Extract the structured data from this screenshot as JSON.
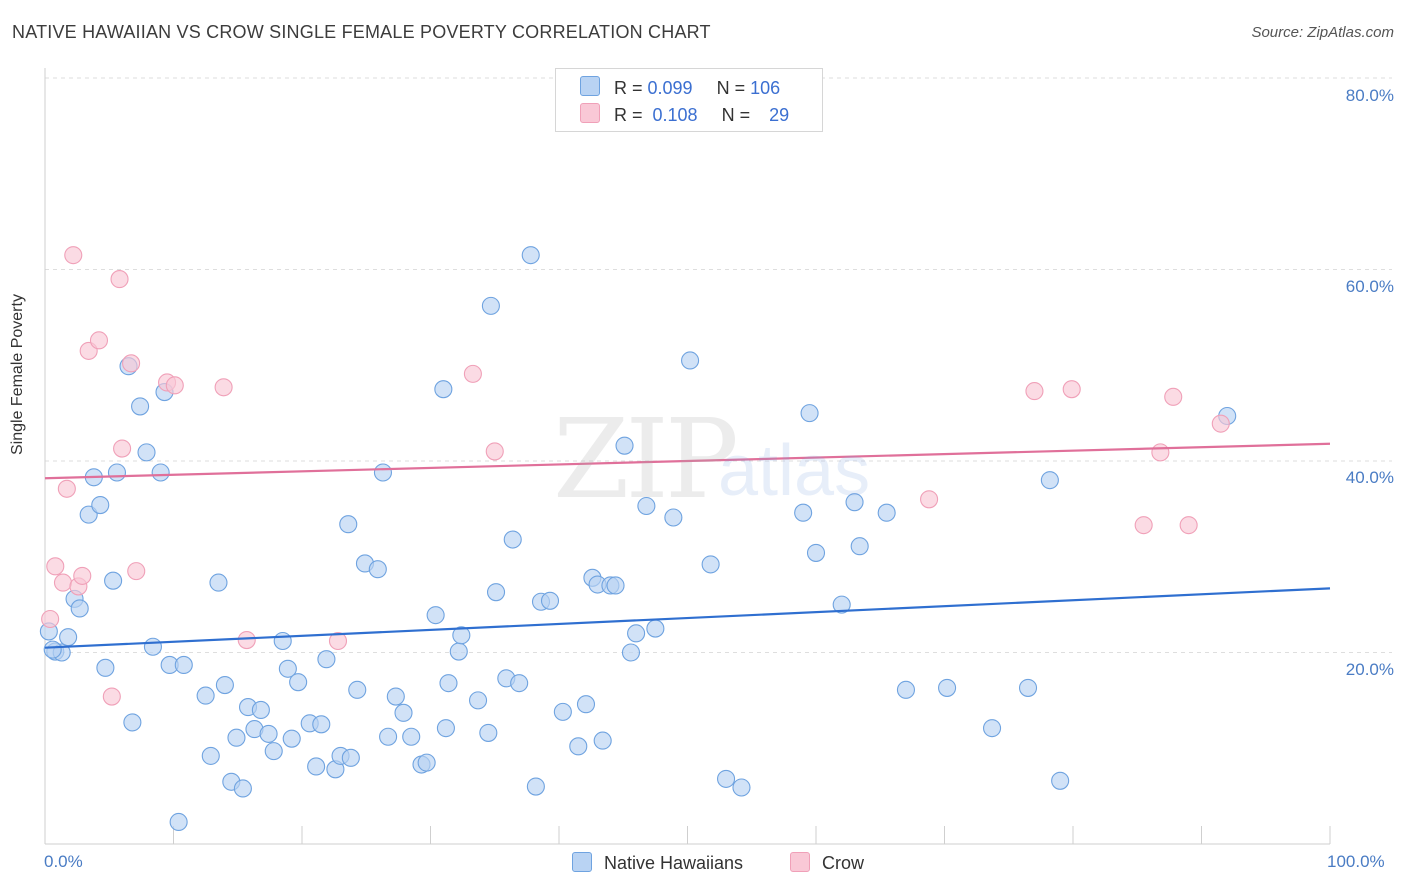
{
  "title": "NATIVE HAWAIIAN VS CROW SINGLE FEMALE POVERTY CORRELATION CHART",
  "source": "Source: ZipAtlas.com",
  "watermark": {
    "zip": "ZIP",
    "atlas": "atlas"
  },
  "colors": {
    "blue": "#6fa3e0",
    "blue_fill": "#b9d3f3",
    "blue_line": "#2f6fd0",
    "pink": "#f0a0b8",
    "pink_fill": "#f9c8d6",
    "pink_line": "#e0709a",
    "tick_text": "#4a7cc4"
  },
  "legend": {
    "rows": [
      {
        "r_label": "R = ",
        "r_value": "0.099",
        "n_label": "N = ",
        "n_value": "106"
      },
      {
        "r_label": "R = ",
        "r_value": "0.108",
        "n_label": "N = ",
        "n_value": "29"
      }
    ]
  },
  "bottom_legend": {
    "series1": "Native Hawaiians",
    "series2": "Crow"
  },
  "chart_data": {
    "type": "scatter",
    "title": "NATIVE HAWAIIAN VS CROW SINGLE FEMALE POVERTY CORRELATION CHART",
    "xlabel": "",
    "ylabel": "Single Female Poverty",
    "xlim": [
      0,
      100
    ],
    "ylim": [
      0,
      80
    ],
    "x_tick_labels": [
      "0.0%",
      "100.0%"
    ],
    "y_ticks": [
      20,
      40,
      60,
      80
    ],
    "y_tick_labels": [
      "20.0%",
      "40.0%",
      "60.0%",
      "80.0%"
    ],
    "grid": true,
    "legend_position": "top-center",
    "series": [
      {
        "name": "Native Hawaiians",
        "trend": {
          "x0": 0,
          "y0": 20.5,
          "x1": 100,
          "y1": 26.7
        },
        "points": [
          [
            0.3,
            22.2
          ],
          [
            0.8,
            20.1
          ],
          [
            1.3,
            20.0
          ],
          [
            1.8,
            21.6
          ],
          [
            2.3,
            25.6
          ],
          [
            2.7,
            24.6
          ],
          [
            3.4,
            34.4
          ],
          [
            3.8,
            38.3
          ],
          [
            4.3,
            35.4
          ],
          [
            4.7,
            18.4
          ],
          [
            5.3,
            27.5
          ],
          [
            5.6,
            38.8
          ],
          [
            6.5,
            49.9
          ],
          [
            6.8,
            12.7
          ],
          [
            7.4,
            45.7
          ],
          [
            7.9,
            40.9
          ],
          [
            8.4,
            20.6
          ],
          [
            9.0,
            38.8
          ],
          [
            9.3,
            47.2
          ],
          [
            9.7,
            18.7
          ],
          [
            10.4,
            2.3
          ],
          [
            10.8,
            18.7
          ],
          [
            12.5,
            15.5
          ],
          [
            12.9,
            9.2
          ],
          [
            13.5,
            27.3
          ],
          [
            14.0,
            16.6
          ],
          [
            14.5,
            6.5
          ],
          [
            14.9,
            11.1
          ],
          [
            15.4,
            5.8
          ],
          [
            15.8,
            14.3
          ],
          [
            16.3,
            12.0
          ],
          [
            16.8,
            14.0
          ],
          [
            17.4,
            11.5
          ],
          [
            17.8,
            9.7
          ],
          [
            18.5,
            21.2
          ],
          [
            18.9,
            18.3
          ],
          [
            19.2,
            11.0
          ],
          [
            19.7,
            16.9
          ],
          [
            20.6,
            12.6
          ],
          [
            21.1,
            8.1
          ],
          [
            21.5,
            12.5
          ],
          [
            21.9,
            19.3
          ],
          [
            22.6,
            7.8
          ],
          [
            23.0,
            9.2
          ],
          [
            23.6,
            33.4
          ],
          [
            23.8,
            9.0
          ],
          [
            24.3,
            16.1
          ],
          [
            24.9,
            29.3
          ],
          [
            25.9,
            28.7
          ],
          [
            26.3,
            38.8
          ],
          [
            26.7,
            11.2
          ],
          [
            27.3,
            15.4
          ],
          [
            27.9,
            13.7
          ],
          [
            28.5,
            11.2
          ],
          [
            29.3,
            8.3
          ],
          [
            29.7,
            8.5
          ],
          [
            30.4,
            23.9
          ],
          [
            31.0,
            47.5
          ],
          [
            31.2,
            12.1
          ],
          [
            31.4,
            16.8
          ],
          [
            32.2,
            20.1
          ],
          [
            32.4,
            21.8
          ],
          [
            33.7,
            15.0
          ],
          [
            34.5,
            11.6
          ],
          [
            34.7,
            56.2
          ],
          [
            35.1,
            26.3
          ],
          [
            35.9,
            17.3
          ],
          [
            36.4,
            31.8
          ],
          [
            36.9,
            16.8
          ],
          [
            37.8,
            61.5
          ],
          [
            38.2,
            6.0
          ],
          [
            38.6,
            25.3
          ],
          [
            39.3,
            25.4
          ],
          [
            40.3,
            13.8
          ],
          [
            41.5,
            10.2
          ],
          [
            42.1,
            14.6
          ],
          [
            42.6,
            27.8
          ],
          [
            43.0,
            27.1
          ],
          [
            43.4,
            10.8
          ],
          [
            44.0,
            27.0
          ],
          [
            44.4,
            27.0
          ],
          [
            45.1,
            41.6
          ],
          [
            45.6,
            20.0
          ],
          [
            46.0,
            22.0
          ],
          [
            46.8,
            35.3
          ],
          [
            47.5,
            22.5
          ],
          [
            48.9,
            34.1
          ],
          [
            50.2,
            50.5
          ],
          [
            51.8,
            29.2
          ],
          [
            53.0,
            6.8
          ],
          [
            54.2,
            5.9
          ],
          [
            59.0,
            34.6
          ],
          [
            59.5,
            45.0
          ],
          [
            60.0,
            30.4
          ],
          [
            62.0,
            25.0
          ],
          [
            63.0,
            35.7
          ],
          [
            63.4,
            31.1
          ],
          [
            65.5,
            34.6
          ],
          [
            67.0,
            16.1
          ],
          [
            70.2,
            16.3
          ],
          [
            73.7,
            12.1
          ],
          [
            76.5,
            16.3
          ],
          [
            78.2,
            38.0
          ],
          [
            79.0,
            6.6
          ],
          [
            92.0,
            44.7
          ],
          [
            0.6,
            20.3
          ]
        ]
      },
      {
        "name": "Crow",
        "trend": {
          "x0": 0,
          "y0": 38.2,
          "x1": 100,
          "y1": 41.8
        },
        "points": [
          [
            0.4,
            23.5
          ],
          [
            0.8,
            29.0
          ],
          [
            1.4,
            27.3
          ],
          [
            1.7,
            37.1
          ],
          [
            2.2,
            61.5
          ],
          [
            2.6,
            26.9
          ],
          [
            2.9,
            28.0
          ],
          [
            3.4,
            51.5
          ],
          [
            4.2,
            52.6
          ],
          [
            5.2,
            15.4
          ],
          [
            5.8,
            59.0
          ],
          [
            6.0,
            41.3
          ],
          [
            6.7,
            50.2
          ],
          [
            7.1,
            28.5
          ],
          [
            9.5,
            48.2
          ],
          [
            10.1,
            47.9
          ],
          [
            13.9,
            47.7
          ],
          [
            15.7,
            21.3
          ],
          [
            22.8,
            21.2
          ],
          [
            33.3,
            49.1
          ],
          [
            35.0,
            41.0
          ],
          [
            68.8,
            36.0
          ],
          [
            77.0,
            47.3
          ],
          [
            79.9,
            47.5
          ],
          [
            85.5,
            33.3
          ],
          [
            86.8,
            40.9
          ],
          [
            87.8,
            46.7
          ],
          [
            89.0,
            33.3
          ],
          [
            91.5,
            43.9
          ]
        ]
      }
    ]
  }
}
